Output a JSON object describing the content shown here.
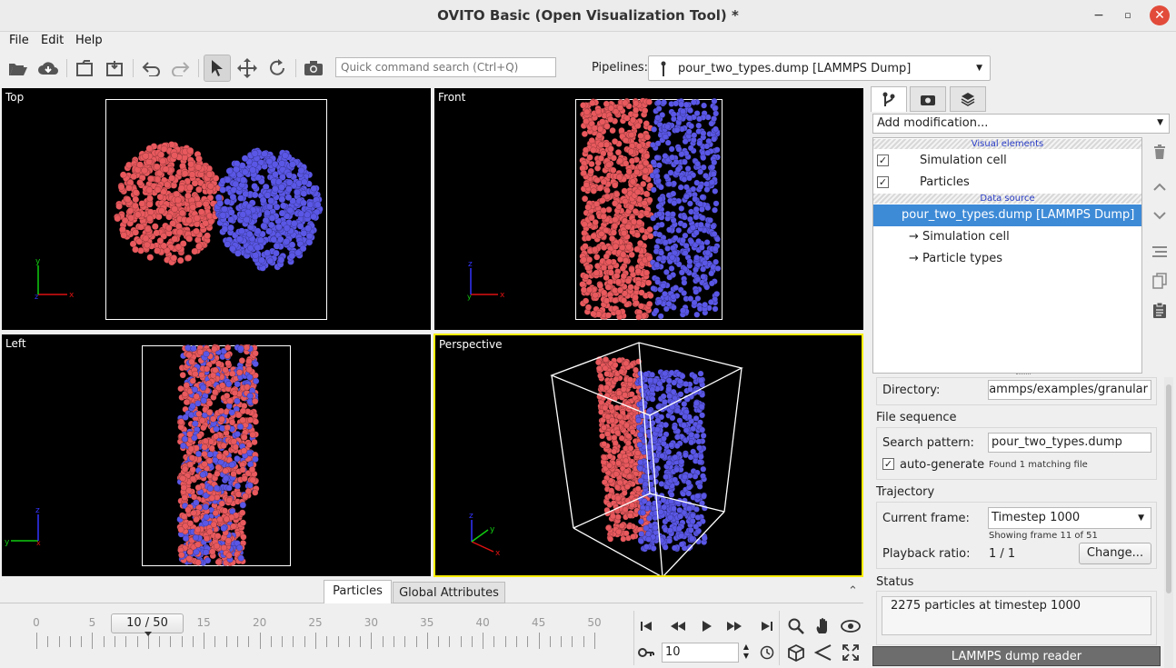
{
  "window": {
    "title": "OVITO Basic (Open Visualization Tool) *",
    "minimize": "−",
    "maximize": "▫",
    "close": "✕"
  },
  "menu": {
    "file": "File",
    "edit": "Edit",
    "help": "Help"
  },
  "toolbar": {
    "search_placeholder": "Quick command search (Ctrl+Q)",
    "pipelines_label": "Pipelines:",
    "pipeline_value": "pour_two_types.dump [LAMMPS Dump]",
    "icons": [
      "open-file-icon",
      "download-icon",
      "new-session-icon",
      "save-session-icon",
      "undo-icon",
      "redo-icon",
      "select-mode-icon",
      "move-icon",
      "rotate-icon",
      "camera-icon"
    ]
  },
  "viewports": {
    "top": "Top",
    "front": "Front",
    "left": "Left",
    "perspective": "Perspective"
  },
  "colors": {
    "type1": "#e8595d",
    "type2": "#5a57e6",
    "active_border": "#ffee00",
    "selection": "#3d8ad7"
  },
  "right_panel": {
    "add_modification": "Add modification...",
    "visual_elements_header": "Visual elements",
    "visual_elements": [
      {
        "label": "Simulation cell",
        "checked": "✓"
      },
      {
        "label": "Particles",
        "checked": "✓"
      }
    ],
    "data_source_header": "Data source",
    "data_source": "pour_two_types.dump [LAMMPS Dump]",
    "data_children": [
      "→ Simulation cell",
      "→ Particle types"
    ],
    "directory_label": "Directory:",
    "directory_value": "nylammps/examples/granular",
    "file_sequence_title": "File sequence",
    "search_pattern_label": "Search pattern:",
    "search_pattern_value": "pour_two_types.dump",
    "autogen_label": "auto-generate",
    "autogen_checked": "✓",
    "matching": "Found 1 matching file",
    "trajectory_title": "Trajectory",
    "current_frame_label": "Current frame:",
    "current_frame_value": "Timestep 1000",
    "showing_frame": "Showing frame 11 of 51",
    "playback_label": "Playback ratio:",
    "playback_value": "1 / 1",
    "change_button": "Change...",
    "status_title": "Status",
    "status_text": "2275 particles at timestep 1000",
    "reader_label": "LAMMPS dump reader"
  },
  "bottom": {
    "tab_particles": "Particles",
    "tab_global": "Global Attributes",
    "collapse": "⌃",
    "frame_display": "10 / 50",
    "tick_labels": [
      "0",
      "5",
      "10",
      "15",
      "20",
      "25",
      "30",
      "35",
      "40",
      "45",
      "50"
    ],
    "current_frame": 10,
    "frame_input": "10"
  }
}
